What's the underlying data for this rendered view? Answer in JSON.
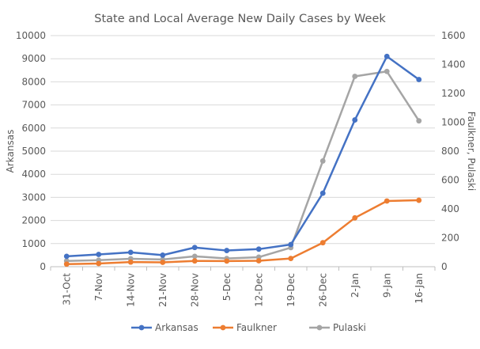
{
  "chart_data": {
    "type": "line",
    "title": "State and Local Average New Daily Cases by Week",
    "categories": [
      "31-Oct",
      "7-Nov",
      "14-Nov",
      "21-Nov",
      "28-Nov",
      "5-Dec",
      "12-Dec",
      "19-Dec",
      "26-Dec",
      "2-Jan",
      "9-Jan",
      "16-Jan"
    ],
    "ylabel": "Arkansas",
    "y2label": "Faulkner, Pulaski",
    "ylim": [
      0,
      10000
    ],
    "y2lim": [
      0,
      1600
    ],
    "yticks": [
      0,
      1000,
      2000,
      3000,
      4000,
      5000,
      6000,
      7000,
      8000,
      9000,
      10000
    ],
    "y2ticks": [
      0,
      200,
      400,
      600,
      800,
      1000,
      1200,
      1400,
      1600
    ],
    "grid": true,
    "legend": "bottom",
    "series": [
      {
        "name": "Arkansas",
        "axis": "left",
        "color": "#4472c4",
        "values": [
          450,
          530,
          620,
          500,
          830,
          700,
          760,
          960,
          3180,
          6350,
          9100,
          8100
        ]
      },
      {
        "name": "Faulkner",
        "axis": "right",
        "color": "#ed7d31",
        "values": [
          18,
          22,
          32,
          30,
          40,
          39,
          41,
          57,
          166,
          338,
          455,
          460
        ]
      },
      {
        "name": "Pulaski",
        "axis": "right",
        "color": "#a5a5a5",
        "values": [
          40,
          45,
          55,
          50,
          72,
          57,
          66,
          132,
          732,
          1318,
          1352,
          1010
        ]
      }
    ]
  }
}
